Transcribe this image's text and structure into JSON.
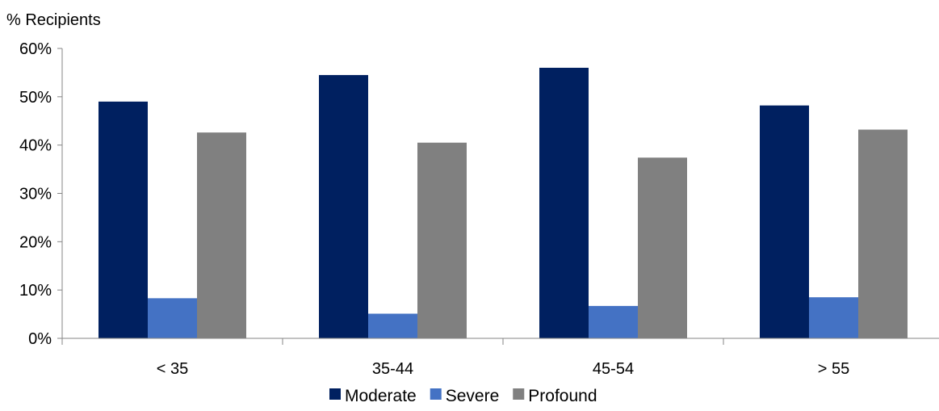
{
  "chart_data": {
    "type": "bar",
    "ylabel": "% Recipients",
    "categories": [
      "< 35",
      "35-44",
      "45-54",
      "> 55"
    ],
    "series": [
      {
        "name": "Moderate",
        "color": "#002060",
        "values": [
          49,
          54.5,
          56,
          48.2
        ]
      },
      {
        "name": "Severe",
        "color": "#4472C4",
        "values": [
          8.3,
          5.1,
          6.7,
          8.5
        ]
      },
      {
        "name": "Profound",
        "color": "#808080",
        "values": [
          42.6,
          40.5,
          37.4,
          43.2
        ]
      }
    ],
    "ylim": [
      0,
      60
    ],
    "yticks": [
      "0%",
      "10%",
      "20%",
      "30%",
      "40%",
      "50%",
      "60%"
    ],
    "grid": false,
    "legend_position": "bottom"
  }
}
